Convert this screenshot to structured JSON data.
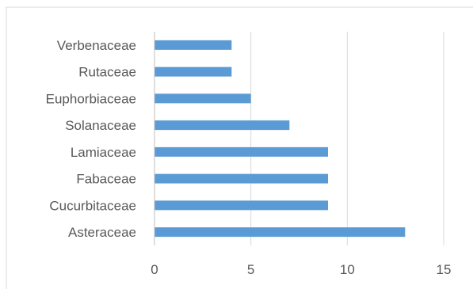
{
  "chart_data": {
    "type": "bar",
    "orientation": "horizontal",
    "categories": [
      "Asteraceae",
      "Cucurbitaceae",
      "Fabaceae",
      "Lamiaceae",
      "Solanaceae",
      "Euphorbiaceae",
      "Rutaceae",
      "Verbenaceae"
    ],
    "values": [
      13,
      9,
      9,
      9,
      7,
      5,
      4,
      4
    ],
    "xlim": [
      0,
      15
    ],
    "xticks": [
      "0",
      "5",
      "10",
      "15"
    ],
    "title": "",
    "xlabel": "",
    "ylabel": "",
    "grid": true,
    "legend": "none",
    "bar_color": "#5B9BD5",
    "grid_color": "#D9D9D9",
    "axis_color": "#BFBFBF",
    "text_color": "#595959"
  }
}
